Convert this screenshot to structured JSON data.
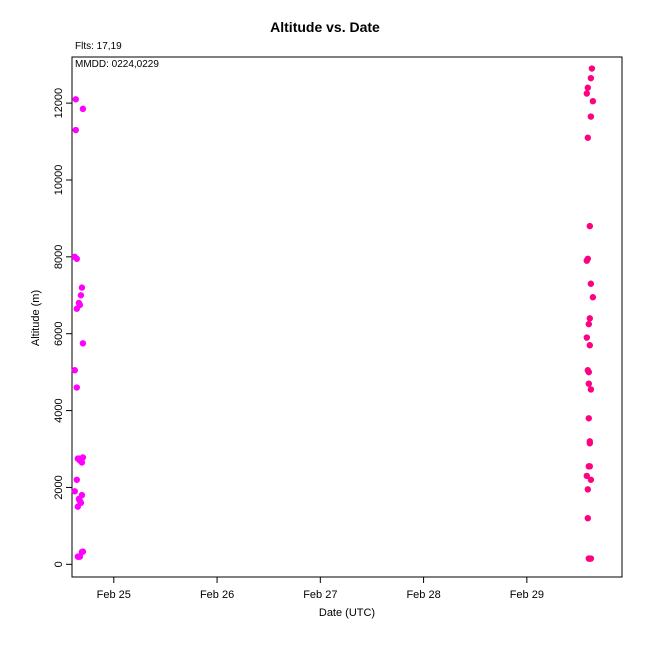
{
  "header": {
    "title": "Altitude  vs. Date",
    "flights_note": "Flts: 17,19",
    "mmdd_note": "MMDD: 0224,0229"
  },
  "chart_data": {
    "type": "scatter",
    "title": "Altitude  vs. Date",
    "xlabel": "Date (UTC)",
    "ylabel": "Altitude (m)",
    "xlim": [
      "2024-02-24T14:17",
      "2024-02-29T22:07"
    ],
    "ylim": [
      -330,
      13200
    ],
    "x_ticks": [
      {
        "value": "2024-02-25T00:00",
        "label": "Feb 25"
      },
      {
        "value": "2024-02-26T00:00",
        "label": "Feb 26"
      },
      {
        "value": "2024-02-27T00:00",
        "label": "Feb 27"
      },
      {
        "value": "2024-02-28T00:00",
        "label": "Feb 28"
      },
      {
        "value": "2024-02-29T00:00",
        "label": "Feb 29"
      }
    ],
    "y_ticks": [
      0,
      2000,
      4000,
      6000,
      8000,
      10000,
      12000
    ],
    "grid": false,
    "series": [
      {
        "color": "#ff00ff",
        "points": [
          {
            "x": "2024-02-24T14:56",
            "y": 5050
          },
          {
            "x": "2024-02-24T14:56",
            "y": 8000
          },
          {
            "x": "2024-02-24T14:56",
            "y": 1900
          },
          {
            "x": "2024-02-24T15:10",
            "y": 12100
          },
          {
            "x": "2024-02-24T15:10",
            "y": 11300
          },
          {
            "x": "2024-02-24T15:24",
            "y": 7950
          },
          {
            "x": "2024-02-24T15:24",
            "y": 6650
          },
          {
            "x": "2024-02-24T15:24",
            "y": 4600
          },
          {
            "x": "2024-02-24T15:24",
            "y": 2200
          },
          {
            "x": "2024-02-24T15:38",
            "y": 200
          },
          {
            "x": "2024-02-24T15:38",
            "y": 1500
          },
          {
            "x": "2024-02-24T15:38",
            "y": 2750
          },
          {
            "x": "2024-02-24T15:53",
            "y": 2750
          },
          {
            "x": "2024-02-24T15:53",
            "y": 1700
          },
          {
            "x": "2024-02-24T15:53",
            "y": 6800
          },
          {
            "x": "2024-02-24T15:53",
            "y": 200
          },
          {
            "x": "2024-02-24T16:07",
            "y": 6750
          },
          {
            "x": "2024-02-24T16:07",
            "y": 2700
          },
          {
            "x": "2024-02-24T16:07",
            "y": 1650
          },
          {
            "x": "2024-02-24T16:07",
            "y": 200
          },
          {
            "x": "2024-02-24T16:21",
            "y": 7000
          },
          {
            "x": "2024-02-24T16:21",
            "y": 1600
          },
          {
            "x": "2024-02-24T16:35",
            "y": 7200
          },
          {
            "x": "2024-02-24T16:35",
            "y": 2750
          },
          {
            "x": "2024-02-24T16:35",
            "y": 1800
          },
          {
            "x": "2024-02-24T16:35",
            "y": 320
          },
          {
            "x": "2024-02-24T16:35",
            "y": 2650
          },
          {
            "x": "2024-02-24T16:49",
            "y": 330
          },
          {
            "x": "2024-02-24T16:49",
            "y": 11850
          },
          {
            "x": "2024-02-24T16:49",
            "y": 5750
          },
          {
            "x": "2024-02-24T16:49",
            "y": 2780
          }
        ]
      },
      {
        "color": "#ff0080",
        "points": [
          {
            "x": "2024-02-29T13:56",
            "y": 5900
          },
          {
            "x": "2024-02-29T13:56",
            "y": 2300
          },
          {
            "x": "2024-02-29T13:56",
            "y": 7900
          },
          {
            "x": "2024-02-29T13:56",
            "y": 12250
          },
          {
            "x": "2024-02-29T14:10",
            "y": 12400
          },
          {
            "x": "2024-02-29T14:10",
            "y": 11100
          },
          {
            "x": "2024-02-29T14:10",
            "y": 7950
          },
          {
            "x": "2024-02-29T14:10",
            "y": 5050
          },
          {
            "x": "2024-02-29T14:10",
            "y": 1950
          },
          {
            "x": "2024-02-29T14:10",
            "y": 1200
          },
          {
            "x": "2024-02-29T14:24",
            "y": 5000
          },
          {
            "x": "2024-02-29T14:24",
            "y": 6250
          },
          {
            "x": "2024-02-29T14:24",
            "y": 4700
          },
          {
            "x": "2024-02-29T14:24",
            "y": 3800
          },
          {
            "x": "2024-02-29T14:24",
            "y": 2550
          },
          {
            "x": "2024-02-29T14:24",
            "y": 150
          },
          {
            "x": "2024-02-29T14:38",
            "y": 8800
          },
          {
            "x": "2024-02-29T14:38",
            "y": 6400
          },
          {
            "x": "2024-02-29T14:38",
            "y": 5700
          },
          {
            "x": "2024-02-29T14:38",
            "y": 3150
          },
          {
            "x": "2024-02-29T14:38",
            "y": 2550
          },
          {
            "x": "2024-02-29T14:38",
            "y": 3200
          },
          {
            "x": "2024-02-29T14:38",
            "y": 150
          },
          {
            "x": "2024-02-29T14:53",
            "y": 12650
          },
          {
            "x": "2024-02-29T14:53",
            "y": 11650
          },
          {
            "x": "2024-02-29T14:53",
            "y": 7300
          },
          {
            "x": "2024-02-29T14:53",
            "y": 4550
          },
          {
            "x": "2024-02-29T14:53",
            "y": 2200
          },
          {
            "x": "2024-02-29T14:53",
            "y": 150
          },
          {
            "x": "2024-02-29T15:07",
            "y": 12900
          },
          {
            "x": "2024-02-29T15:21",
            "y": 12050
          },
          {
            "x": "2024-02-29T15:21",
            "y": 6950
          }
        ]
      }
    ]
  }
}
